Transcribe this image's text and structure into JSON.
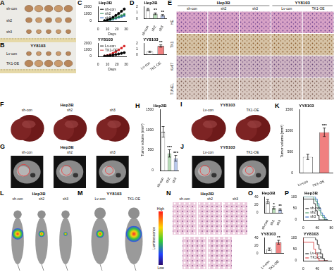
{
  "panels": [
    {
      "letter": "A",
      "type": "tumor_photo",
      "rows": [
        "sh-con",
        "sh2",
        "sh3"
      ]
    },
    {
      "letter": "B",
      "type": "tumor_photo",
      "title": "YY8103",
      "rows": [
        "Lv-con",
        "TK1-OE"
      ]
    },
    {
      "letter": "E",
      "type": "ihc_grid",
      "groups": [
        {
          "name": "Hep3B",
          "columns": [
            "sh-con",
            "sh2",
            "sh3"
          ]
        },
        {
          "name": "YY8103",
          "columns": [
            "Lv-con",
            "TK1-OE"
          ]
        }
      ],
      "rows": [
        "HE",
        "TK1",
        "Ki-67",
        "TUNEL"
      ]
    },
    {
      "letter": "F",
      "type": "liver_photo",
      "title": "Hep3B",
      "columns": [
        "sh-con",
        "sh2",
        "sh3"
      ]
    },
    {
      "letter": "G",
      "type": "mri",
      "title": "Hep3B",
      "columns": [
        "sh-con",
        "sh2",
        "sh3"
      ]
    },
    {
      "letter": "I",
      "type": "liver_photo",
      "title": "YY8103",
      "columns": [
        "Lv-con",
        "TK1-OE"
      ]
    },
    {
      "letter": "J",
      "type": "mri",
      "title": "YY8103",
      "columns": [
        "Lv-con",
        "TK1-OE"
      ]
    },
    {
      "letter": "L",
      "type": "bioluminescence",
      "title": "Hep3B",
      "columns": [
        "sh-con",
        "sh2",
        "sh3"
      ]
    },
    {
      "letter": "M",
      "type": "bioluminescence",
      "title": "YY8103",
      "columns": [
        "Lv-con",
        "TK1-OE"
      ]
    },
    {
      "letter": "N",
      "type": "lung_he",
      "title": "Hep3B",
      "columns": [
        "sh-con",
        "sh2",
        "sh3"
      ]
    },
    {
      "type": "colorbar",
      "title": "Luminescence",
      "high": "High",
      "low": "Low"
    }
  ],
  "chart_data": [
    {
      "panel": "C",
      "type": "line",
      "title": "Hep3B",
      "xlabel": "Days",
      "x": [
        7,
        10,
        13,
        16,
        19,
        22,
        25,
        28
      ],
      "series": [
        {
          "name": "sh-con",
          "color": "#000000",
          "marker": "circle",
          "values": [
            60,
            150,
            300,
            520,
            780,
            1050,
            1350,
            1650
          ]
        },
        {
          "name": "sh2",
          "color": "#2e8b57",
          "marker": "square",
          "values": [
            50,
            110,
            200,
            320,
            450,
            600,
            760,
            920
          ]
        },
        {
          "name": "sh3",
          "color": "#1f5fbf",
          "marker": "triangle",
          "values": [
            50,
            100,
            170,
            260,
            360,
            480,
            600,
            740
          ]
        }
      ],
      "xlim": [
        0,
        30
      ],
      "xticks": [
        0,
        10,
        20,
        30
      ],
      "ylim": [
        0,
        2000
      ],
      "yticks": [
        0,
        1000,
        2000
      ],
      "legend": "upper left",
      "grid": false
    },
    {
      "type": "line",
      "title": "YY8103",
      "xlabel": "Days",
      "x": [
        7,
        10,
        13,
        16,
        19,
        22,
        25,
        28
      ],
      "series": [
        {
          "name": "Lv-con",
          "color": "#000000",
          "marker": "circle",
          "values": [
            40,
            80,
            130,
            200,
            280,
            370,
            460,
            560
          ]
        },
        {
          "name": "TK1-OE",
          "color": "#d62728",
          "marker": "square",
          "values": [
            60,
            140,
            280,
            480,
            720,
            980,
            1250,
            1550
          ]
        }
      ],
      "xlim": [
        0,
        30
      ],
      "xticks": [
        0,
        10,
        20,
        30
      ],
      "ylim": [
        0,
        2000
      ],
      "yticks": [
        0,
        1000,
        2000
      ],
      "legend": "upper left",
      "grid": false
    },
    {
      "panel": "D",
      "type": "bar",
      "title": "Hep3B",
      "categories": [
        "sh-con",
        "sh2",
        "sh3"
      ],
      "values": [
        1.5,
        0.8,
        0.55
      ],
      "errors": [
        0.2,
        0.15,
        0.12
      ],
      "colors": [
        "#ffffff",
        "#b8dcb8",
        "#b8c8ec"
      ],
      "annotations": [
        null,
        "**",
        "**"
      ],
      "ylim": [
        0,
        2
      ],
      "yticks": [
        0,
        1,
        2
      ],
      "grid": false
    },
    {
      "type": "bar",
      "title": "YY8103",
      "categories": [
        "Lv-con",
        "TK1-OE"
      ],
      "values": [
        0.5,
        1.5
      ],
      "errors": [
        0.1,
        0.2
      ],
      "colors": [
        "#ffffff",
        "#f08080"
      ],
      "annotations": [
        null,
        "**"
      ],
      "ylim": [
        0,
        2
      ],
      "yticks": [
        0,
        1,
        2
      ],
      "grid": false
    },
    {
      "panel": "H",
      "type": "bar",
      "title": "Hep3B",
      "ylabel": "Tumor volume (mm³)",
      "categories": [
        "sh-con",
        "sh2",
        "sh3"
      ],
      "values": [
        950,
        420,
        300
      ],
      "errors": [
        130,
        90,
        70
      ],
      "colors": [
        "#ffffff",
        "#b8dcb8",
        "#b8c8ec"
      ],
      "annotations": [
        null,
        "***",
        "***"
      ],
      "ylim": [
        0,
        1500
      ],
      "yticks": [
        0,
        500,
        1000,
        1500
      ],
      "grid": false
    },
    {
      "panel": "K",
      "type": "bar",
      "title": "YY8103",
      "ylabel": "Tumor volume (mm³)",
      "categories": [
        "Lv-con",
        "TK1-OE"
      ],
      "values": [
        380,
        960
      ],
      "errors": [
        60,
        100
      ],
      "colors": [
        "#ffffff",
        "#f08080"
      ],
      "annotations": [
        null,
        "***"
      ],
      "ylim": [
        0,
        1500
      ],
      "yticks": [
        0,
        500,
        1000,
        1500
      ],
      "grid": false
    },
    {
      "panel": "O",
      "type": "bar",
      "title": "Hep3B",
      "categories": [
        "sh-con",
        "sh2",
        "sh3"
      ],
      "values": [
        28,
        12,
        8
      ],
      "errors": [
        5,
        3,
        2
      ],
      "colors": [
        "#ffffff",
        "#b8dcb8",
        "#b8c8ec"
      ],
      "annotations": [
        null,
        "*",
        "**"
      ],
      "ylim": [
        0,
        40
      ],
      "yticks": [
        0,
        20,
        40
      ],
      "grid": false
    },
    {
      "type": "bar",
      "title": "YY8103",
      "categories": [
        "Lv-con",
        "TK1-OE"
      ],
      "values": [
        10,
        28
      ],
      "errors": [
        3,
        5
      ],
      "colors": [
        "#ffffff",
        "#f08080"
      ],
      "annotations": [
        null,
        "**"
      ],
      "ylim": [
        0,
        40
      ],
      "yticks": [
        0,
        20,
        40
      ],
      "grid": false
    },
    {
      "panel": "P",
      "type": "line",
      "title": "Hep3B",
      "x": [
        0,
        30,
        35,
        40,
        45,
        50,
        55,
        60,
        65,
        70
      ],
      "series": [
        {
          "name": "sh-con",
          "color": "#000000",
          "line_style": "steps",
          "values": [
            100,
            90,
            70,
            40,
            20,
            0,
            0,
            0,
            0,
            0
          ]
        },
        {
          "name": "sh2",
          "color": "#2e8b57",
          "line_style": "steps",
          "values": [
            100,
            100,
            90,
            80,
            60,
            40,
            20,
            10,
            0,
            0
          ]
        },
        {
          "name": "sh3",
          "color": "#1f5fbf",
          "line_style": "steps",
          "values": [
            100,
            100,
            100,
            90,
            70,
            50,
            30,
            20,
            10,
            0
          ]
        }
      ],
      "xlim": [
        0,
        80
      ],
      "xticks": [
        0,
        40,
        80
      ],
      "ylim": [
        0,
        100
      ],
      "yticks": [
        0,
        50,
        100
      ],
      "legend": "lower left",
      "grid": false
    },
    {
      "type": "line",
      "title": "YY8103",
      "x": [
        0,
        30,
        35,
        40,
        45,
        50,
        55,
        60,
        65,
        70
      ],
      "series": [
        {
          "name": "Lv-con",
          "color": "#000000",
          "line_style": "steps",
          "values": [
            100,
            100,
            100,
            90,
            70,
            50,
            30,
            10,
            0,
            0
          ]
        },
        {
          "name": "TK1-OE",
          "color": "#d62728",
          "line_style": "steps",
          "values": [
            100,
            80,
            50,
            30,
            10,
            0,
            0,
            0,
            0,
            0
          ]
        }
      ],
      "xlim": [
        0,
        80
      ],
      "xticks": [
        0,
        40,
        80
      ],
      "ylim": [
        0,
        100
      ],
      "yticks": [
        0,
        50,
        100
      ],
      "legend": "lower left",
      "grid": false
    }
  ]
}
